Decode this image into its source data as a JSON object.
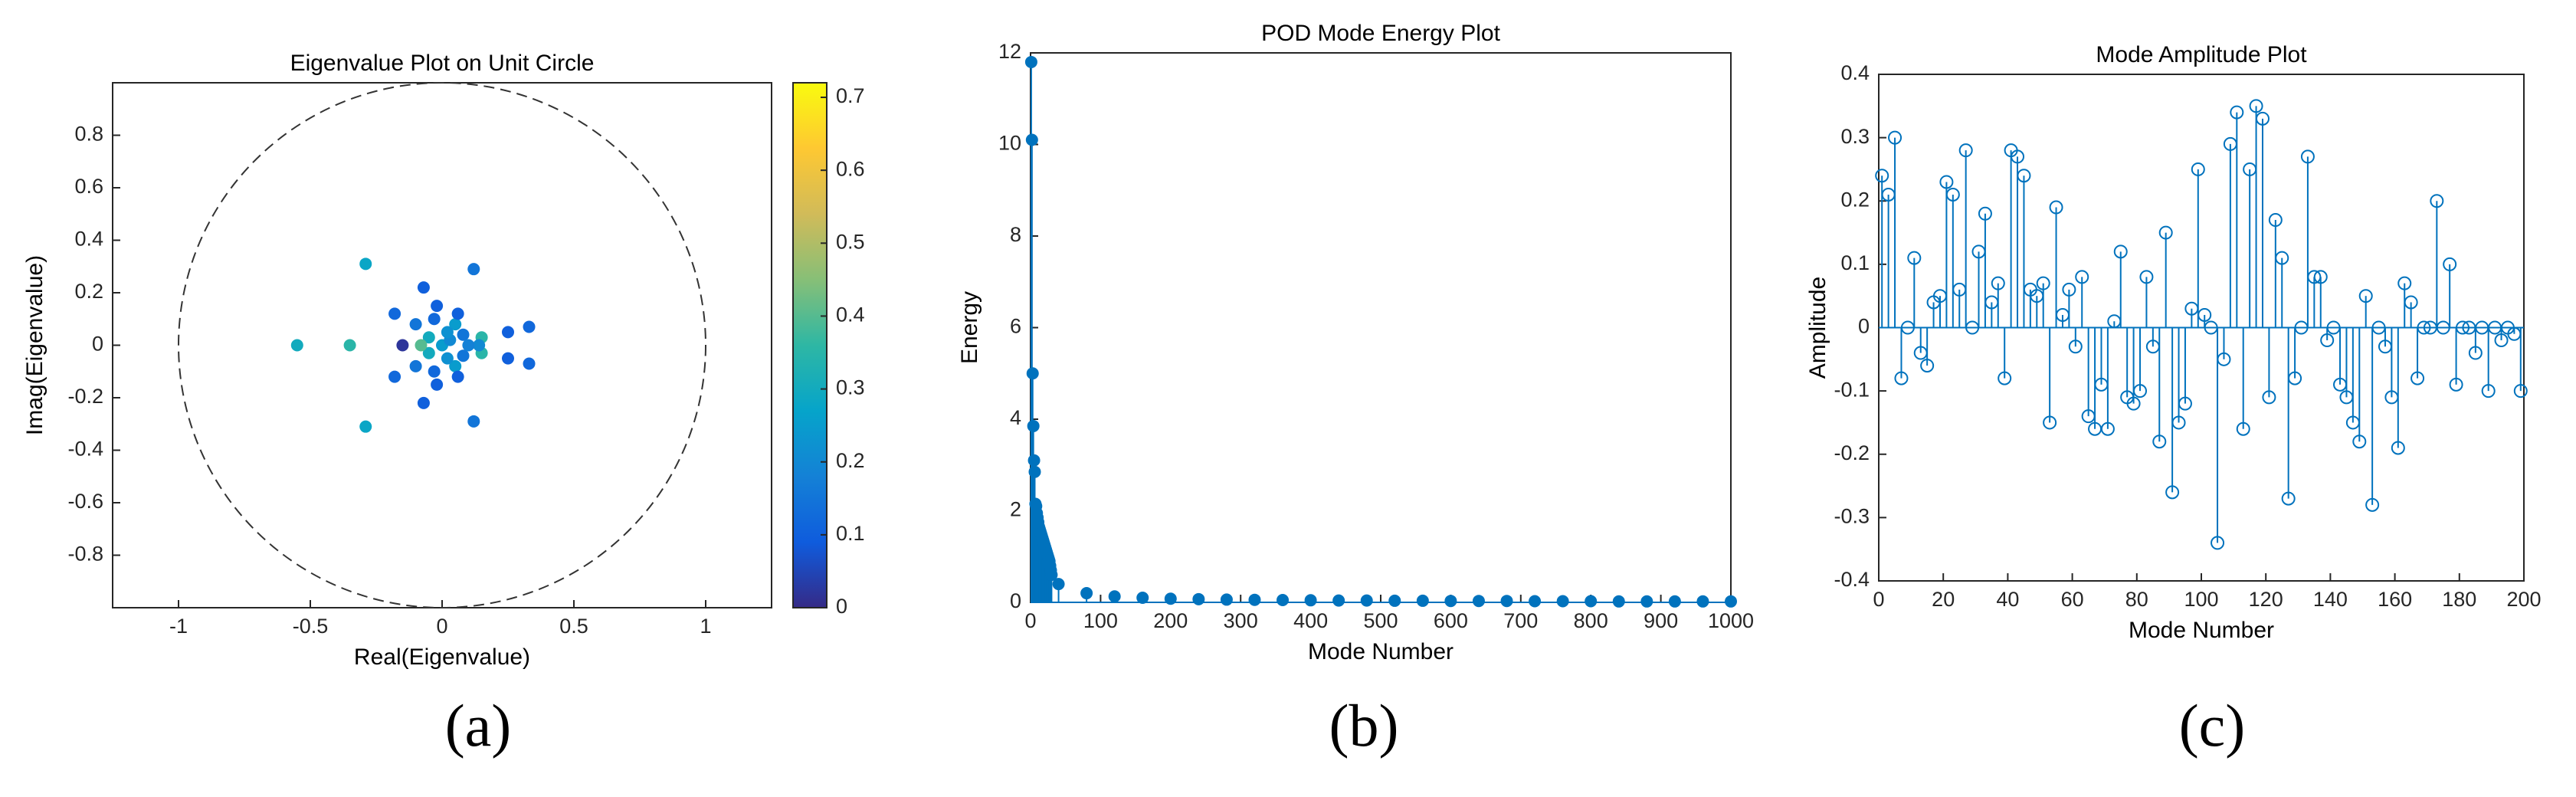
{
  "chart_data": [
    {
      "type": "scatter",
      "title": "Eigenvalue Plot on Unit Circle",
      "x_label": "Real(Eigenvalue)",
      "y_label": "Imag(Eigenvalue)",
      "caption": "(a)",
      "x": [
        -0.55,
        -0.35,
        -0.29,
        -0.29,
        0.12,
        0.12,
        0.33,
        0.33,
        0.25,
        0.25,
        -0.07,
        -0.07,
        -0.18,
        -0.18,
        -0.15,
        0.15,
        0.15,
        0.14,
        -0.1,
        -0.1,
        -0.02,
        -0.02,
        0.05,
        0.05,
        0,
        0.03,
        -0.05,
        -0.05,
        0.08,
        0.08,
        -0.08,
        0.1,
        0.02,
        0.02,
        -0.03,
        -0.03,
        0.06,
        0.06
      ],
      "y": [
        0,
        0,
        0.31,
        -0.31,
        0.29,
        -0.29,
        0.07,
        -0.07,
        0.05,
        -0.05,
        0.22,
        -0.22,
        0.12,
        -0.12,
        0,
        0.03,
        -0.03,
        0,
        0.08,
        -0.08,
        0.15,
        -0.15,
        0.08,
        -0.08,
        0,
        0.02,
        0.03,
        -0.03,
        0.04,
        -0.04,
        0,
        0,
        0.05,
        -0.05,
        0.1,
        -0.1,
        0.12,
        -0.12
      ],
      "color_values": [
        0.3,
        0.35,
        0.28,
        0.28,
        0.15,
        0.15,
        0.12,
        0.12,
        0.1,
        0.1,
        0.1,
        0.1,
        0.12,
        0.12,
        0.02,
        0.35,
        0.35,
        0.2,
        0.15,
        0.15,
        0.1,
        0.1,
        0.25,
        0.25,
        0.25,
        0.2,
        0.3,
        0.3,
        0.15,
        0.15,
        0.4,
        0.18,
        0.22,
        0.22,
        0.12,
        0.12,
        0.1,
        0.1
      ],
      "colormap": [
        "#352a87",
        "#0f5cdd",
        "#1481d6",
        "#06a4ca",
        "#2eb7a4",
        "#87bf77",
        "#d1bb59",
        "#fec832",
        "#f9fb0e"
      ],
      "colorbar": {
        "lim": [
          0,
          0.72
        ],
        "ticks": [
          0,
          0.1,
          0.2,
          0.3,
          0.4,
          0.5,
          0.6,
          0.7
        ]
      },
      "reference_circle": {
        "radius": 1,
        "color": "#333333"
      },
      "xlim": [
        -1.25,
        1.25
      ],
      "xticks": [
        -1,
        -0.5,
        0,
        0.5,
        1
      ],
      "ylim": [
        -1,
        1
      ],
      "yticks": [
        -0.8,
        -0.6,
        -0.4,
        -0.2,
        0,
        0.2,
        0.4,
        0.6,
        0.8
      ]
    },
    {
      "type": "stem",
      "title": "POD Mode Energy Plot",
      "x_label": "Mode Number",
      "y_label": "Energy",
      "caption": "(b)",
      "color": "#0072bd",
      "marker_fill": true,
      "x": [
        1,
        2,
        3,
        4,
        5,
        6,
        7,
        8,
        9,
        10,
        11,
        12,
        13,
        14,
        15,
        16,
        17,
        18,
        19,
        20,
        21,
        22,
        23,
        24,
        25,
        26,
        27,
        28,
        29,
        30,
        40,
        80,
        120,
        160,
        200,
        240,
        280,
        320,
        360,
        400,
        440,
        480,
        520,
        560,
        600,
        640,
        680,
        720,
        760,
        800,
        840,
        880,
        920,
        960,
        1000
      ],
      "values": [
        11.8,
        10.1,
        5.0,
        3.85,
        3.1,
        2.85,
        2.15,
        2.1,
        1.95,
        1.85,
        1.75,
        1.65,
        1.6,
        1.55,
        1.5,
        1.45,
        1.4,
        1.35,
        1.3,
        1.25,
        1.2,
        1.15,
        1.1,
        1.05,
        1.0,
        0.95,
        0.9,
        0.8,
        0.7,
        0.6,
        0.4,
        0.2,
        0.13,
        0.1,
        0.08,
        0.07,
        0.06,
        0.055,
        0.05,
        0.045,
        0.04,
        0.04,
        0.035,
        0.035,
        0.03,
        0.03,
        0.03,
        0.025,
        0.025,
        0.025,
        0.02,
        0.02,
        0.02,
        0.02,
        0.02
      ],
      "xlim": [
        0,
        1000
      ],
      "xticks": [
        0,
        100,
        200,
        300,
        400,
        500,
        600,
        700,
        800,
        900,
        1000
      ],
      "ylim": [
        0,
        12
      ],
      "yticks": [
        0,
        2,
        4,
        6,
        8,
        10,
        12
      ]
    },
    {
      "type": "stem",
      "title": "Mode Amplitude Plot",
      "x_label": "Mode Number",
      "y_label": "Amplitude",
      "caption": "(c)",
      "color": "#0072bd",
      "marker_fill": false,
      "x": [
        1,
        3,
        5,
        7,
        9,
        11,
        13,
        15,
        17,
        19,
        21,
        23,
        25,
        27,
        29,
        31,
        33,
        35,
        37,
        39,
        41,
        43,
        45,
        47,
        49,
        51,
        53,
        55,
        57,
        59,
        61,
        63,
        65,
        67,
        69,
        71,
        73,
        75,
        77,
        79,
        81,
        83,
        85,
        87,
        89,
        91,
        93,
        95,
        97,
        99,
        101,
        103,
        105,
        107,
        109,
        111,
        113,
        115,
        117,
        119,
        121,
        123,
        125,
        127,
        129,
        131,
        133,
        135,
        137,
        139,
        141,
        143,
        145,
        147,
        149,
        151,
        153,
        155,
        157,
        159,
        161,
        163,
        165,
        167,
        169,
        171,
        173,
        175,
        177,
        179,
        181,
        183,
        185,
        187,
        189,
        191,
        193,
        195,
        197,
        199
      ],
      "values": [
        0.24,
        0.21,
        0.3,
        -0.08,
        0,
        0.11,
        -0.04,
        -0.06,
        0.04,
        0.05,
        0.23,
        0.21,
        0.06,
        0.28,
        0,
        0.12,
        0.18,
        0.04,
        0.07,
        -0.08,
        0.28,
        0.27,
        0.24,
        0.06,
        0.05,
        0.07,
        -0.15,
        0.19,
        0.02,
        0.06,
        -0.03,
        0.08,
        -0.14,
        -0.16,
        -0.09,
        -0.16,
        0.01,
        0.12,
        -0.11,
        -0.12,
        -0.1,
        0.08,
        -0.03,
        -0.18,
        0.15,
        -0.26,
        -0.15,
        -0.12,
        0.03,
        0.25,
        0.02,
        0,
        -0.34,
        -0.05,
        0.29,
        0.34,
        -0.16,
        0.25,
        0.35,
        0.33,
        -0.11,
        0.17,
        0.11,
        -0.27,
        -0.08,
        0,
        0.27,
        0.08,
        0.08,
        -0.02,
        0,
        -0.09,
        -0.11,
        -0.15,
        -0.18,
        0.05,
        -0.28,
        0,
        -0.03,
        -0.11,
        -0.19,
        0.07,
        0.04,
        -0.08,
        0,
        0,
        0.2,
        0,
        0.1,
        -0.09,
        0,
        0,
        -0.04,
        0,
        -0.1,
        0,
        -0.02,
        0,
        -0.01,
        -0.1
      ],
      "xlim": [
        0,
        200
      ],
      "xticks": [
        0,
        20,
        40,
        60,
        80,
        100,
        120,
        140,
        160,
        180,
        200
      ],
      "ylim": [
        -0.4,
        0.4
      ],
      "yticks": [
        -0.4,
        -0.3,
        -0.2,
        -0.1,
        0,
        0.1,
        0.2,
        0.3,
        0.4
      ]
    }
  ]
}
